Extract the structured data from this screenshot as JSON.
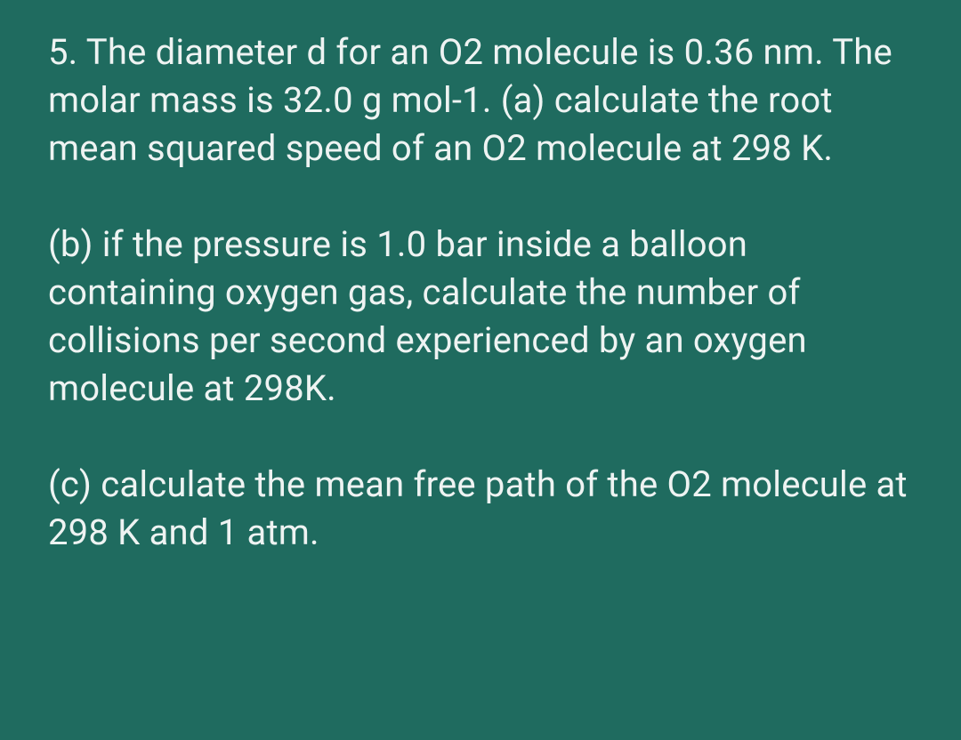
{
  "colors": {
    "background": "#1f6b5f",
    "text": "#eef3f2"
  },
  "typography": {
    "font_family": "Segoe UI, Roboto, -apple-system, Arial, sans-serif",
    "font_size_pt": 30,
    "line_height": 1.35,
    "font_weight": 400
  },
  "paragraphs": {
    "p1": "5. The diameter d for an O2 molecule is 0.36 nm. The molar mass is 32.0 g mol-1.\n(a) calculate the root mean squared speed of an O2 molecule at 298 K.",
    "p2": "(b) if the pressure is 1.0 bar inside a balloon containing oxygen gas, calculate the number of collisions per second experienced by an oxygen molecule at 298K.",
    "p3": "(c) calculate the mean free path of the O2 molecule at 298 K and 1 atm."
  }
}
